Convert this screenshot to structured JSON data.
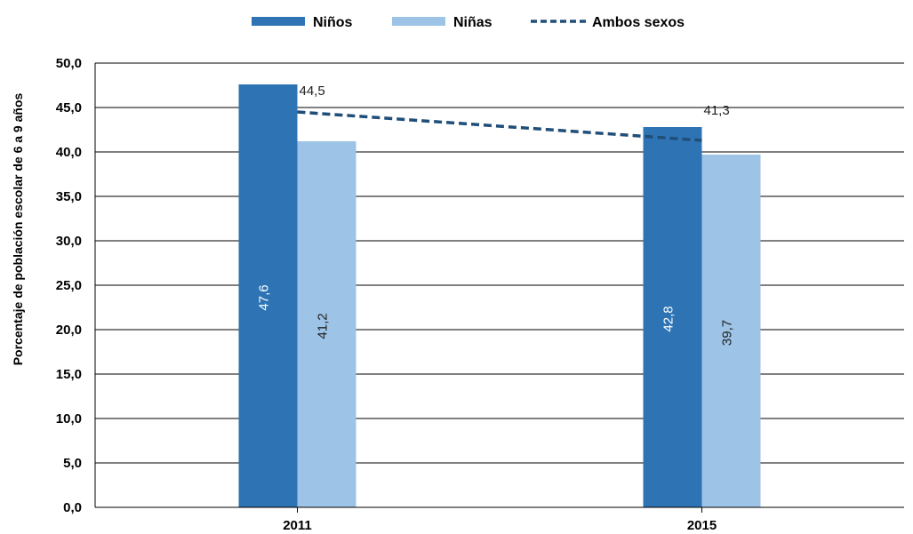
{
  "chart_data": {
    "type": "bar",
    "categories": [
      "2011",
      "2015"
    ],
    "series": [
      {
        "name": "Niños",
        "type": "bar",
        "values": [
          47.6,
          42.8
        ],
        "value_labels": [
          "47,6",
          "42,8"
        ],
        "color": "#2e74b5"
      },
      {
        "name": "Niñas",
        "type": "bar",
        "values": [
          41.2,
          39.7
        ],
        "value_labels": [
          "41,2",
          "39,7"
        ],
        "color": "#9dc3e6"
      },
      {
        "name": "Ambos sexos",
        "type": "line",
        "style": "dashed",
        "values": [
          44.5,
          41.3
        ],
        "value_labels": [
          "44,5",
          "41,3"
        ],
        "color": "#1f4e79"
      }
    ],
    "xlabel": "",
    "ylabel": "Porcentaje de población escolar de 6 a 9 años",
    "ylim": [
      0,
      50
    ],
    "yticks": [
      "0,0",
      "5,0",
      "10,0",
      "15,0",
      "20,0",
      "25,0",
      "30,0",
      "35,0",
      "40,0",
      "45,0",
      "50,0"
    ],
    "grid": true,
    "legend_position": "top"
  }
}
